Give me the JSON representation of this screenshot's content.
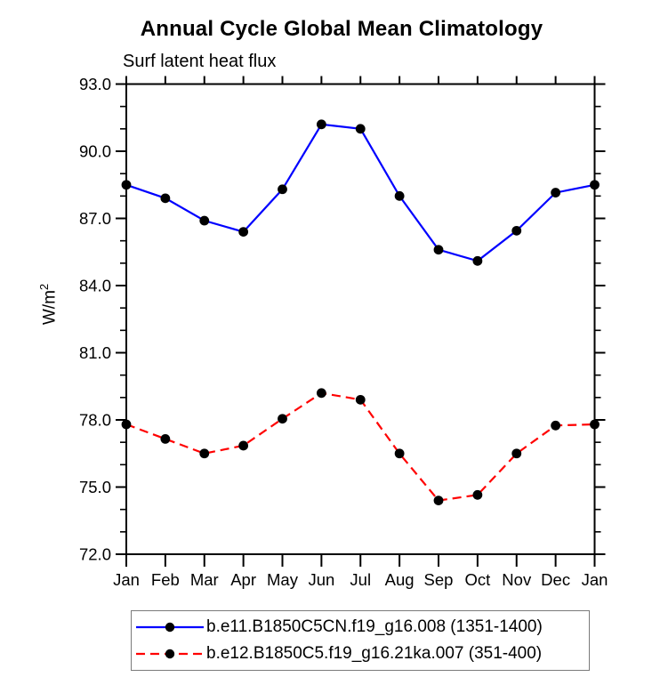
{
  "chart_data": {
    "type": "line",
    "title": "Annual Cycle Global Mean Climatology",
    "subtitle": "Surf latent heat flux",
    "ylabel_base": "W/m",
    "ylabel_exponent": "2",
    "categories": [
      "Jan",
      "Feb",
      "Mar",
      "Apr",
      "May",
      "Jun",
      "Jul",
      "Aug",
      "Sep",
      "Oct",
      "Nov",
      "Dec",
      "Jan"
    ],
    "ylim": [
      72.0,
      93.0
    ],
    "ytick_major": [
      72,
      75,
      78,
      81,
      84,
      87,
      90,
      93
    ],
    "ytick_labels": [
      "72.0",
      "75.0",
      "78.0",
      "81.0",
      "84.0",
      "87.0",
      "90.0",
      "93.0"
    ],
    "ytick_minor_step": 1.0,
    "grid": false,
    "legend_position": "bottom",
    "axis_color": "#000000",
    "series": [
      {
        "name": "b.e11.B1850C5CN.f19_g16.008 (1351-1400)",
        "color": "#0000ff",
        "line_style": "solid",
        "marker": "filled-circle",
        "marker_color": "#000000",
        "values": [
          88.5,
          87.9,
          86.9,
          86.4,
          88.3,
          91.2,
          91.0,
          88.0,
          85.6,
          85.1,
          86.45,
          88.15,
          88.5
        ]
      },
      {
        "name": "b.e12.B1850C5.f19_g16.21ka.007 (351-400)",
        "color": "#ff0000",
        "line_style": "dashed",
        "marker": "filled-circle",
        "marker_color": "#000000",
        "values": [
          77.8,
          77.15,
          76.5,
          76.85,
          78.05,
          79.2,
          78.9,
          76.5,
          74.4,
          74.65,
          76.5,
          77.75,
          77.8
        ]
      }
    ]
  }
}
